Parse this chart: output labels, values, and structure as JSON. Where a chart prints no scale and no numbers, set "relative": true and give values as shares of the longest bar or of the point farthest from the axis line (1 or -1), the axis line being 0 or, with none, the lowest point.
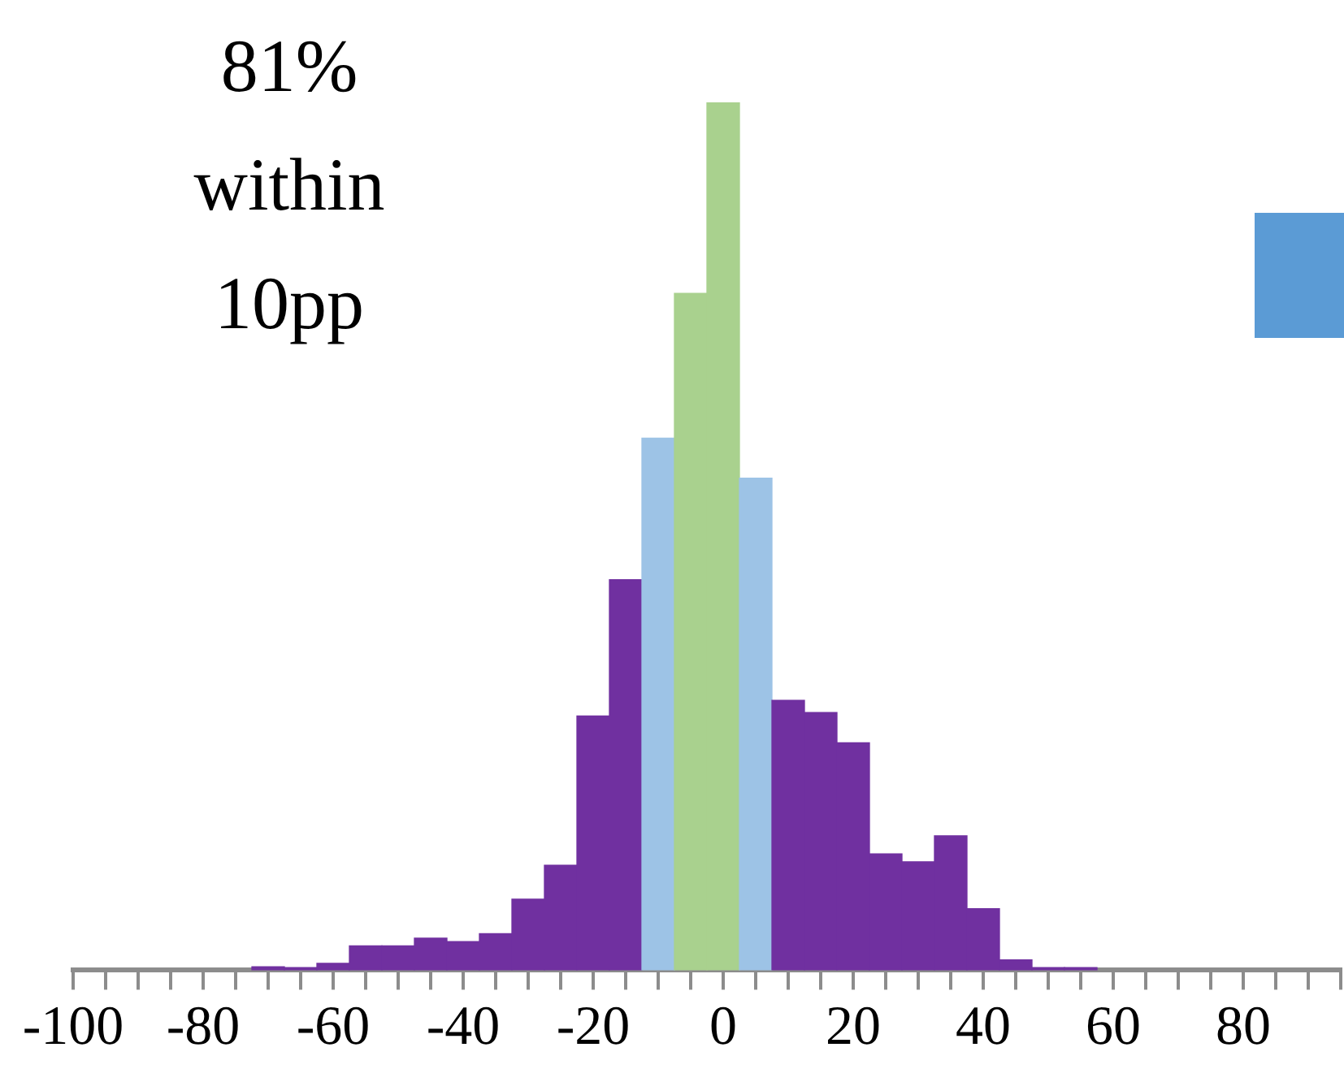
{
  "chart_data": {
    "type": "bar",
    "relative": true,
    "x": [
      -70,
      -65,
      -60,
      -55,
      -50,
      -45,
      -40,
      -35,
      -30,
      -25,
      -20,
      -15,
      -10,
      -5,
      0,
      5,
      10,
      15,
      20,
      25,
      30,
      35,
      40,
      45,
      50,
      55
    ],
    "values": [
      0.004,
      0.003,
      0.008,
      0.028,
      0.028,
      0.037,
      0.033,
      0.042,
      0.082,
      0.121,
      0.293,
      0.45,
      0.613,
      0.78,
      1,
      0.567,
      0.311,
      0.297,
      0.262,
      0.134,
      0.125,
      0.155,
      0.071,
      0.012,
      0.003,
      0.003
    ],
    "colors": [
      "#7030a0",
      "#7030a0",
      "#7030a0",
      "#7030a0",
      "#7030a0",
      "#7030a0",
      "#7030a0",
      "#7030a0",
      "#7030a0",
      "#7030a0",
      "#7030a0",
      "#7030a0",
      "#9dc3e6",
      "#a9d18e",
      "#a9d18e",
      "#9dc3e6",
      "#7030a0",
      "#7030a0",
      "#7030a0",
      "#7030a0",
      "#7030a0",
      "#7030a0",
      "#7030a0",
      "#7030a0",
      "#7030a0",
      "#7030a0"
    ],
    "xlim": [
      -100,
      95
    ],
    "xticks": [
      -100,
      {
        "value": -95,
        "label": null
      },
      {
        "value": -90,
        "label": null
      },
      {
        "value": -85,
        "label": null
      },
      -80,
      {
        "value": -75,
        "label": null
      },
      {
        "value": -70,
        "label": null
      },
      {
        "value": -65,
        "label": null
      },
      -60,
      {
        "value": -55,
        "label": null
      },
      {
        "value": -50,
        "label": null
      },
      {
        "value": -45,
        "label": null
      },
      -40,
      {
        "value": -35,
        "label": null
      },
      {
        "value": -30,
        "label": null
      },
      {
        "value": -25,
        "label": null
      },
      -20,
      {
        "value": -15,
        "label": null
      },
      {
        "value": -10,
        "label": null
      },
      {
        "value": -5,
        "label": null
      },
      0,
      {
        "value": 5,
        "label": null
      },
      {
        "value": 10,
        "label": null
      },
      {
        "value": 15,
        "label": null
      },
      20,
      {
        "value": 25,
        "label": null
      },
      {
        "value": 30,
        "label": null
      },
      {
        "value": 35,
        "label": null
      },
      40,
      {
        "value": 45,
        "label": null
      },
      {
        "value": 50,
        "label": null
      },
      {
        "value": 55,
        "label": null
      },
      60,
      {
        "value": 65,
        "label": null
      },
      {
        "value": 70,
        "label": null
      },
      {
        "value": 75,
        "label": null
      },
      80,
      {
        "value": 85,
        "label": null
      },
      {
        "value": 90,
        "label": null
      },
      {
        "value": 95,
        "label": null
      }
    ],
    "annotations": [
      "81% within 10pp"
    ],
    "grid": false,
    "legend": false
  }
}
